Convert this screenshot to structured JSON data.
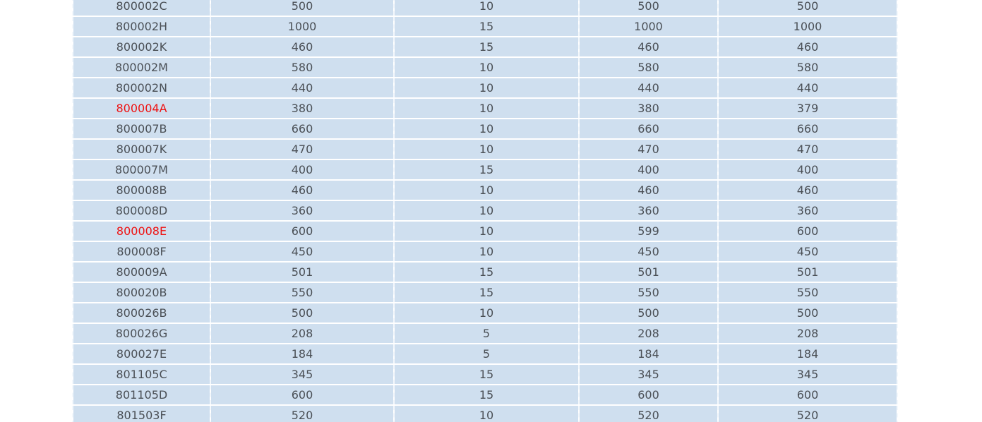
{
  "table": {
    "highlight_color": "#ee1111",
    "rows": [
      {
        "code": "800002C",
        "v1": "500",
        "v2": "10",
        "v3": "500",
        "v4": "500",
        "highlight": false
      },
      {
        "code": "800002H",
        "v1": "1000",
        "v2": "15",
        "v3": "1000",
        "v4": "1000",
        "highlight": false
      },
      {
        "code": "800002K",
        "v1": "460",
        "v2": "15",
        "v3": "460",
        "v4": "460",
        "highlight": false
      },
      {
        "code": "800002M",
        "v1": "580",
        "v2": "10",
        "v3": "580",
        "v4": "580",
        "highlight": false
      },
      {
        "code": "800002N",
        "v1": "440",
        "v2": "10",
        "v3": "440",
        "v4": "440",
        "highlight": false
      },
      {
        "code": "800004A",
        "v1": "380",
        "v2": "10",
        "v3": "380",
        "v4": "379",
        "highlight": true
      },
      {
        "code": "800007B",
        "v1": "660",
        "v2": "10",
        "v3": "660",
        "v4": "660",
        "highlight": false
      },
      {
        "code": "800007K",
        "v1": "470",
        "v2": "10",
        "v3": "470",
        "v4": "470",
        "highlight": false
      },
      {
        "code": "800007M",
        "v1": "400",
        "v2": "15",
        "v3": "400",
        "v4": "400",
        "highlight": false
      },
      {
        "code": "800008B",
        "v1": "460",
        "v2": "10",
        "v3": "460",
        "v4": "460",
        "highlight": false
      },
      {
        "code": "800008D",
        "v1": "360",
        "v2": "10",
        "v3": "360",
        "v4": "360",
        "highlight": false
      },
      {
        "code": "800008E",
        "v1": "600",
        "v2": "10",
        "v3": "599",
        "v4": "600",
        "highlight": true
      },
      {
        "code": "800008F",
        "v1": "450",
        "v2": "10",
        "v3": "450",
        "v4": "450",
        "highlight": false
      },
      {
        "code": "800009A",
        "v1": "501",
        "v2": "15",
        "v3": "501",
        "v4": "501",
        "highlight": false
      },
      {
        "code": "800020B",
        "v1": "550",
        "v2": "15",
        "v3": "550",
        "v4": "550",
        "highlight": false
      },
      {
        "code": "800026B",
        "v1": "500",
        "v2": "10",
        "v3": "500",
        "v4": "500",
        "highlight": false
      },
      {
        "code": "800026G",
        "v1": "208",
        "v2": "5",
        "v3": "208",
        "v4": "208",
        "highlight": false
      },
      {
        "code": "800027E",
        "v1": "184",
        "v2": "5",
        "v3": "184",
        "v4": "184",
        "highlight": false
      },
      {
        "code": "801105C",
        "v1": "345",
        "v2": "15",
        "v3": "345",
        "v4": "345",
        "highlight": false
      },
      {
        "code": "801105D",
        "v1": "600",
        "v2": "15",
        "v3": "600",
        "v4": "600",
        "highlight": false
      },
      {
        "code": "801503F",
        "v1": "520",
        "v2": "10",
        "v3": "520",
        "v4": "520",
        "highlight": false
      }
    ]
  }
}
